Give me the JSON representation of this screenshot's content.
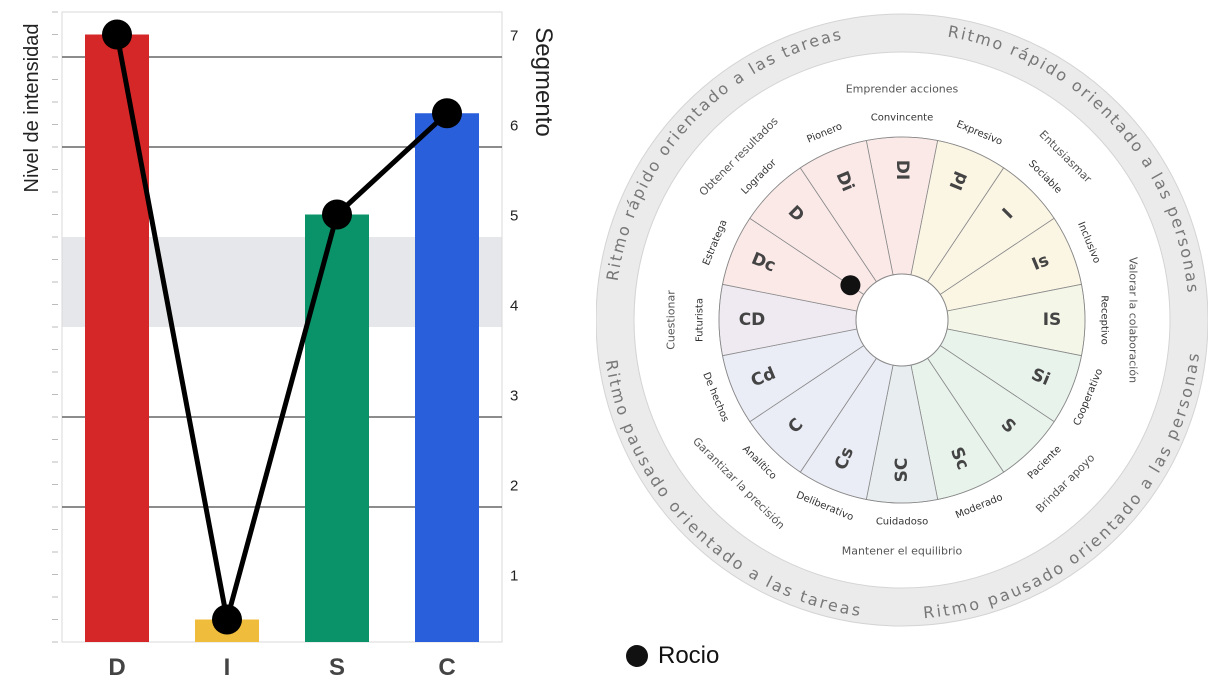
{
  "bar_chart": {
    "ylabel": "Nivel de intensidad",
    "y2label": "Segmento",
    "segment_ticks": [
      "1",
      "2",
      "3",
      "4",
      "5",
      "6",
      "7"
    ],
    "categories": [
      "D",
      "I",
      "S",
      "C"
    ]
  },
  "chart_data": [
    {
      "type": "bar",
      "categories": [
        "D",
        "I",
        "S",
        "C"
      ],
      "values": [
        27,
        1,
        19,
        23.5
      ],
      "line_values": [
        27,
        1,
        19,
        23.5
      ],
      "ylim": [
        0,
        28
      ],
      "y2lim": [
        0,
        7
      ],
      "ylabel": "Nivel de intensidad",
      "y2label": "Segmento",
      "y2_ticks": [
        1,
        2,
        3,
        4,
        5,
        6,
        7
      ],
      "highlight_band": [
        3.5,
        4.5
      ],
      "grid": true,
      "colors": [
        "#d62728",
        "#f0bc3c",
        "#0a9368",
        "#2a5fdc"
      ]
    }
  ],
  "wheel": {
    "outer_labels": {
      "top_left": "Ritmo rápido orientado a las tareas",
      "top_right": "Ritmo rápido orientado a las personas",
      "bottom_left": "Ritmo pausado orientado a las tareas",
      "bottom_right": "Ritmo pausado orientado a las personas"
    },
    "segments": [
      {
        "code": "DI",
        "trait": "Convincente",
        "fill": "#fbe9e8"
      },
      {
        "code": "Id",
        "trait": "Expresivo",
        "fill": "#fbf5e4"
      },
      {
        "code": "I",
        "trait": "Sociable",
        "fill": "#fbf5e4"
      },
      {
        "code": "Is",
        "trait": "Inclusivo",
        "fill": "#fbf5e4"
      },
      {
        "code": "IS",
        "trait": "Receptivo",
        "fill": "#f4f6e8"
      },
      {
        "code": "Si",
        "trait": "Cooperativo",
        "fill": "#e8f3ec"
      },
      {
        "code": "S",
        "trait": "Paciente",
        "fill": "#e8f3ec"
      },
      {
        "code": "Sc",
        "trait": "Moderado",
        "fill": "#e8f3ec"
      },
      {
        "code": "SC",
        "trait": "Cuidadoso",
        "fill": "#e8eef0"
      },
      {
        "code": "Cs",
        "trait": "Deliberativo",
        "fill": "#eaecf6"
      },
      {
        "code": "C",
        "trait": "Analítico",
        "fill": "#eaecf6"
      },
      {
        "code": "Cd",
        "trait": "De hechos",
        "fill": "#eaecf6"
      },
      {
        "code": "CD",
        "trait": "Futurista",
        "fill": "#efeaf1"
      },
      {
        "code": "Dc",
        "trait": "Estratega",
        "fill": "#fbe9e8"
      },
      {
        "code": "D",
        "trait": "Logrador",
        "fill": "#fbe9e8"
      },
      {
        "code": "Di",
        "trait": "Pionero",
        "fill": "#fbe9e8"
      }
    ],
    "themes": [
      {
        "text": "Emprender acciones",
        "angle": 0
      },
      {
        "text": "Entusiasmar",
        "angle": 45
      },
      {
        "text": "Valorar la colaboración",
        "angle": 90
      },
      {
        "text": "Brindar apoyo",
        "angle": 135
      },
      {
        "text": "Mantener el equilibrio",
        "angle": 180
      },
      {
        "text": "Garantizar la precisión",
        "angle": 225
      },
      {
        "text": "Cuestionar",
        "angle": 270
      },
      {
        "text": "Obtener resultados",
        "angle": 315
      }
    ],
    "person_marker": {
      "angle_deg": -56,
      "radius_fraction": 0.34
    }
  },
  "legend": {
    "name": "Rocio",
    "color": "#111111"
  }
}
